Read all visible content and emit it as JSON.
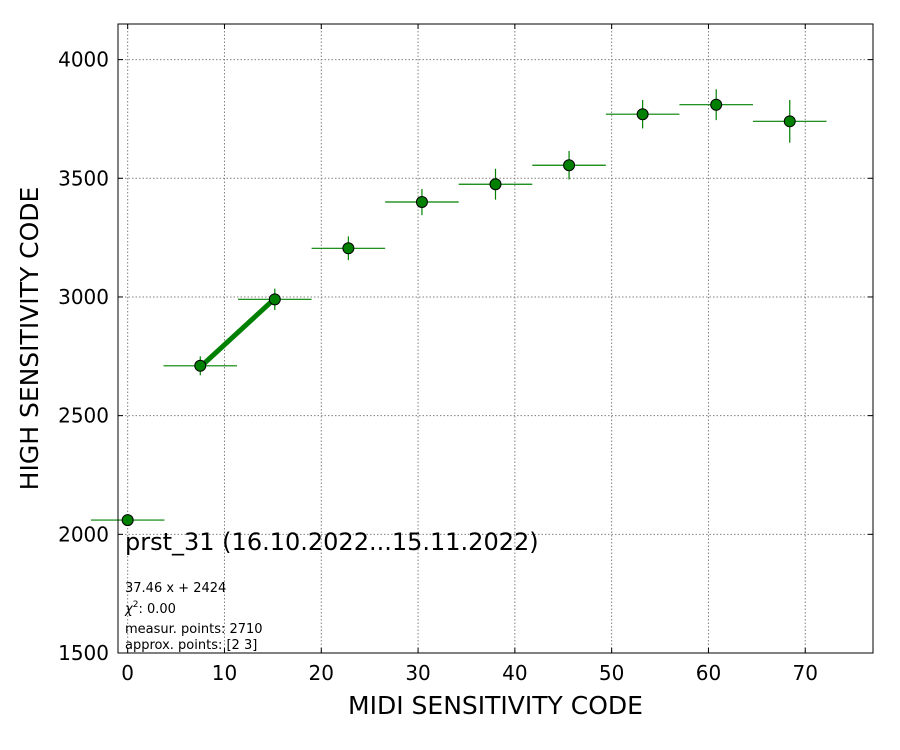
{
  "chart_data": {
    "type": "scatter",
    "title": "",
    "xlabel": "MIDI SENSITIVITY CODE",
    "ylabel": "HIGH SENSITIVITY CODE",
    "xlim": [
      -1,
      77
    ],
    "ylim": [
      1500,
      4150
    ],
    "xticks": [
      0,
      10,
      20,
      30,
      40,
      50,
      60,
      70
    ],
    "yticks": [
      1500,
      2000,
      2500,
      3000,
      3500,
      4000
    ],
    "grid": true,
    "series": [
      {
        "x": [
          0,
          7.5,
          15.2,
          22.8,
          30.4,
          38.0,
          45.6,
          53.2,
          60.8,
          68.4
        ],
        "y": [
          2060,
          2710,
          2990,
          3205,
          3400,
          3475,
          3555,
          3770,
          3810,
          3740
        ],
        "xerr": [
          3.8,
          3.8,
          3.8,
          3.8,
          3.8,
          3.8,
          3.8,
          3.8,
          3.8,
          3.8
        ],
        "yerr": [
          8,
          40,
          45,
          50,
          55,
          65,
          60,
          60,
          65,
          90
        ],
        "color": "#008000"
      }
    ],
    "fit": {
      "x_start": 7.5,
      "x_end": 15.2,
      "slope": 37.46,
      "intercept": 2424,
      "color": "#008000"
    },
    "annotations": {
      "main": "prst_31 (16.10.2022...15.11.2022)",
      "equation": "37.46 x + 2424",
      "chi_symbol": "χ",
      "chi_sup": "2",
      "chi_value": ": 0.00",
      "measur": "measur. points: 2710",
      "approx": "approx. points: [2 3]"
    }
  }
}
